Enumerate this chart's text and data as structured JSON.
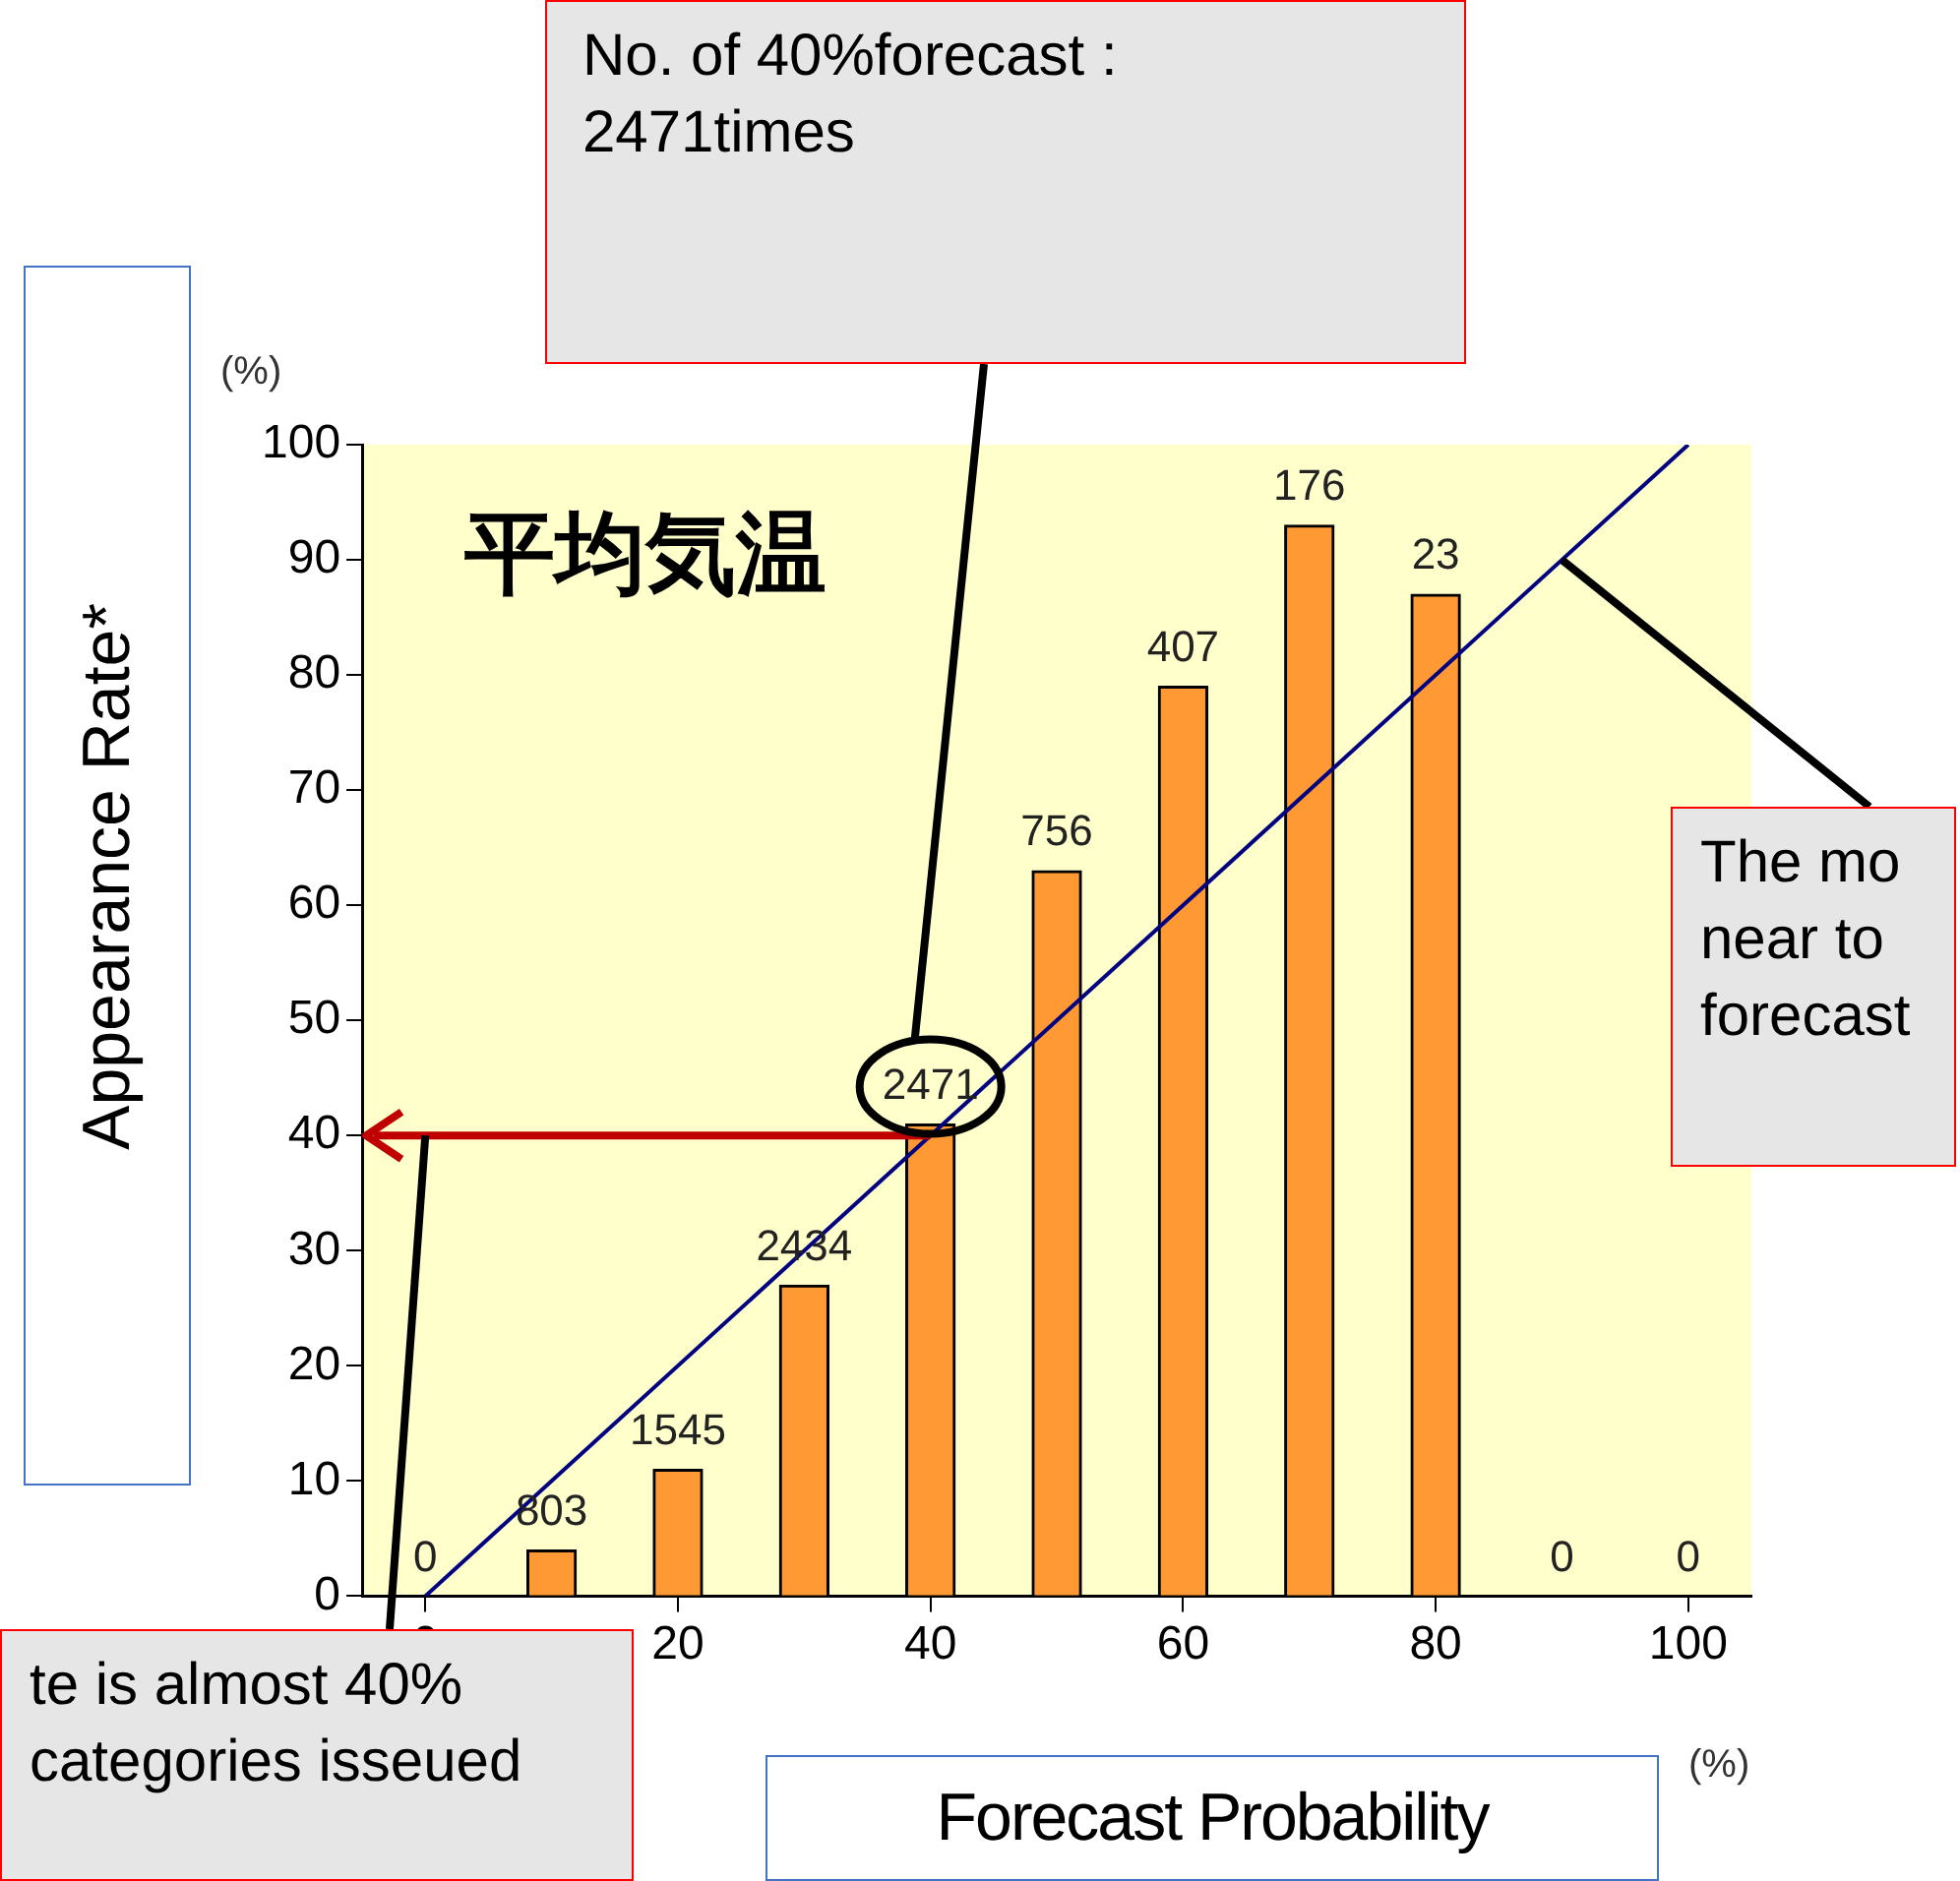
{
  "chart_data": {
    "type": "bar",
    "title": "平均気温",
    "xlabel": "Forecast Probability",
    "ylabel": "Appearance Rate*",
    "x": [
      0,
      10,
      20,
      30,
      40,
      50,
      60,
      70,
      80,
      90,
      100
    ],
    "series": [
      {
        "color": "#ff9933",
        "values": [
          0,
          4,
          11,
          27,
          41,
          63,
          79,
          93,
          87,
          0,
          0
        ]
      },
      {
        "type": "line",
        "color": "#000080",
        "x": [
          0,
          100
        ],
        "values": [
          0,
          100
        ]
      }
    ],
    "xlim": [
      -5,
      105
    ],
    "xticks": [
      0,
      20,
      40,
      60,
      80,
      100
    ],
    "ylim": [
      0,
      100
    ],
    "yticks": [
      0,
      10,
      20,
      30,
      40,
      50,
      60,
      70,
      80,
      90,
      100
    ],
    "grid": false,
    "legend": false,
    "ref_lines": [
      {
        "axis": "y",
        "value": 40,
        "color": "#c00000"
      }
    ],
    "annotations": [
      "No. of 40%forecast :\n2471times",
      {
        "text": "The mo\nnear to\nforecast",
        "x": 90,
        "y": 90
      },
      {
        "text": "te is almost 40%\ncategories isseued",
        "x": 0,
        "y": 40
      },
      "(%)",
      "(%)",
      {
        "text": "0",
        "x": 0,
        "y": 0
      },
      {
        "text": "803",
        "x": 10,
        "y": 4
      },
      {
        "text": "1545",
        "x": 20,
        "y": 11
      },
      {
        "text": "2434",
        "x": 30,
        "y": 27
      },
      {
        "text": "2471",
        "x": 40,
        "y": 41
      },
      {
        "text": "756",
        "x": 50,
        "y": 63
      },
      {
        "text": "407",
        "x": 60,
        "y": 79
      },
      {
        "text": "176",
        "x": 70,
        "y": 93
      },
      {
        "text": "23",
        "x": 80,
        "y": 87
      },
      {
        "text": "0",
        "x": 90,
        "y": 0
      },
      {
        "text": "0",
        "x": 100,
        "y": 0
      }
    ]
  }
}
